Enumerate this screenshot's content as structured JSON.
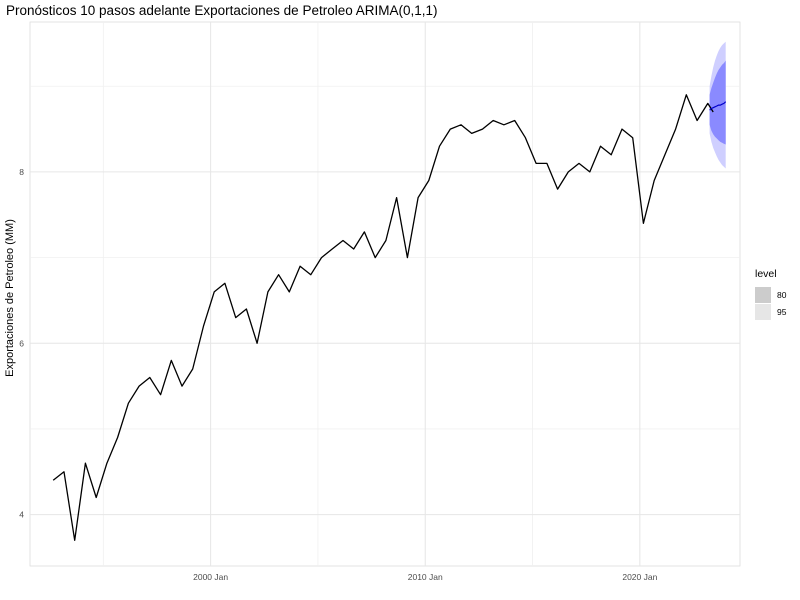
{
  "chart_data": {
    "type": "line",
    "title": "Pronósticos 10 pasos adelante Exportaciones de Petroleo ARIMA(0,1,1)",
    "xlabel": "",
    "ylabel": "Exportaciones de Petroleo (MM)",
    "x_ticks": [
      "2000 Jan",
      "2010 Jan",
      "2020 Jan"
    ],
    "y_ticks": [
      4,
      6,
      8
    ],
    "xlim": [
      "1991-08",
      "2024-09"
    ],
    "ylim": [
      3.4,
      9.75
    ],
    "grid": true,
    "legend": {
      "title": "level",
      "placement": "right",
      "entries": [
        "80",
        "95"
      ]
    },
    "colors": {
      "history": "#000000",
      "forecast": "#0000cc",
      "band80": "#8a8aff",
      "band95": "#cfcfff",
      "legend80": "#cccccc",
      "legend95": "#e6e6e6"
    },
    "series": [
      {
        "role": "history",
        "x": [
          "1992-09",
          "1993-03",
          "1993-09",
          "1994-03",
          "1994-09",
          "1995-03",
          "1995-09",
          "1996-03",
          "1996-09",
          "1997-03",
          "1997-09",
          "1998-03",
          "1998-09",
          "1999-03",
          "1999-09",
          "2000-03",
          "2000-09",
          "2001-03",
          "2001-09",
          "2002-03",
          "2002-09",
          "2003-03",
          "2003-09",
          "2004-03",
          "2004-09",
          "2005-03",
          "2005-09",
          "2006-03",
          "2006-09",
          "2007-03",
          "2007-09",
          "2008-03",
          "2008-09",
          "2009-03",
          "2009-09",
          "2010-03",
          "2010-09",
          "2011-03",
          "2011-09",
          "2012-03",
          "2012-09",
          "2013-03",
          "2013-09",
          "2014-03",
          "2014-09",
          "2015-03",
          "2015-09",
          "2016-03",
          "2016-09",
          "2017-03",
          "2017-09",
          "2018-03",
          "2018-09",
          "2019-03",
          "2019-09",
          "2020-03",
          "2020-09",
          "2021-03",
          "2021-09",
          "2022-03",
          "2022-09",
          "2023-03",
          "2023-06"
        ],
        "values": [
          4.4,
          4.5,
          3.7,
          4.6,
          4.2,
          4.6,
          4.9,
          5.3,
          5.5,
          5.6,
          5.4,
          5.8,
          5.5,
          5.7,
          6.2,
          6.6,
          6.7,
          6.3,
          6.4,
          6.0,
          6.6,
          6.8,
          6.6,
          6.9,
          6.8,
          7.0,
          7.1,
          7.2,
          7.1,
          7.3,
          7.0,
          7.2,
          7.7,
          7.0,
          7.7,
          7.9,
          8.3,
          8.5,
          8.55,
          8.45,
          8.5,
          8.6,
          8.55,
          8.6,
          8.4,
          8.1,
          8.1,
          7.8,
          8.0,
          8.1,
          8.0,
          8.3,
          8.2,
          8.5,
          8.4,
          7.4,
          7.9,
          8.2,
          8.5,
          8.9,
          8.6,
          8.8,
          8.7
        ]
      },
      {
        "role": "forecast",
        "x": [
          "2023-04",
          "2023-05",
          "2023-06",
          "2023-07",
          "2023-08",
          "2023-09",
          "2023-10",
          "2023-11",
          "2023-12",
          "2024-01"
        ],
        "values": [
          8.72,
          8.74,
          8.75,
          8.76,
          8.77,
          8.78,
          8.78,
          8.79,
          8.8,
          8.82
        ],
        "lo80": [
          8.55,
          8.48,
          8.44,
          8.41,
          8.39,
          8.37,
          8.35,
          8.34,
          8.33,
          8.32
        ],
        "hi80": [
          8.9,
          8.98,
          9.04,
          9.1,
          9.15,
          9.19,
          9.22,
          9.25,
          9.27,
          9.3
        ],
        "lo95": [
          8.45,
          8.35,
          8.28,
          8.23,
          8.18,
          8.14,
          8.11,
          8.08,
          8.06,
          8.04
        ],
        "hi95": [
          9.0,
          9.12,
          9.22,
          9.3,
          9.36,
          9.41,
          9.45,
          9.48,
          9.5,
          9.52
        ]
      }
    ]
  }
}
